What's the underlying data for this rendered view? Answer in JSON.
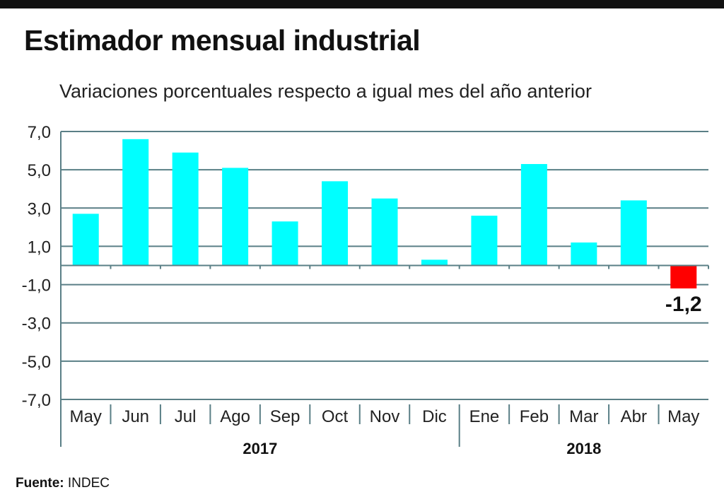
{
  "header": {
    "title": "Estimador mensual industrial",
    "subtitle": "Variaciones porcentuales respecto a igual mes del año anterior"
  },
  "footer": {
    "source_label": "Fuente:",
    "source_value": "INDEC"
  },
  "colors": {
    "positive": "#00FFFF",
    "negative": "#FF0000",
    "grid": "#5a7f86",
    "text": "#111111"
  },
  "chart_data": {
    "type": "bar",
    "title": "Estimador mensual industrial",
    "subtitle": "Variaciones porcentuales respecto a igual mes del año anterior",
    "categories": [
      "May",
      "Jun",
      "Jul",
      "Ago",
      "Sep",
      "Oct",
      "Nov",
      "Dic",
      "Ene",
      "Feb",
      "Mar",
      "Abr",
      "May"
    ],
    "values": [
      2.7,
      6.6,
      5.9,
      5.1,
      2.3,
      4.4,
      3.5,
      0.3,
      2.6,
      5.3,
      1.2,
      3.4,
      -1.2
    ],
    "groups": [
      {
        "label": "2017",
        "start": 0,
        "end": 7
      },
      {
        "label": "2018",
        "start": 8,
        "end": 12
      }
    ],
    "data_labels": [
      {
        "index": 12,
        "text": "-1,2"
      }
    ],
    "yticks": [
      7,
      5,
      3,
      1,
      -1,
      -3,
      -5,
      -7
    ],
    "ytick_labels": [
      "7,0",
      "5,0",
      "3,0",
      "1,0",
      "-1,0",
      "-3,0",
      "-5,0",
      "-7,0"
    ],
    "ylim": [
      -7,
      7
    ],
    "grid": true,
    "xlabel": "",
    "ylabel": ""
  }
}
